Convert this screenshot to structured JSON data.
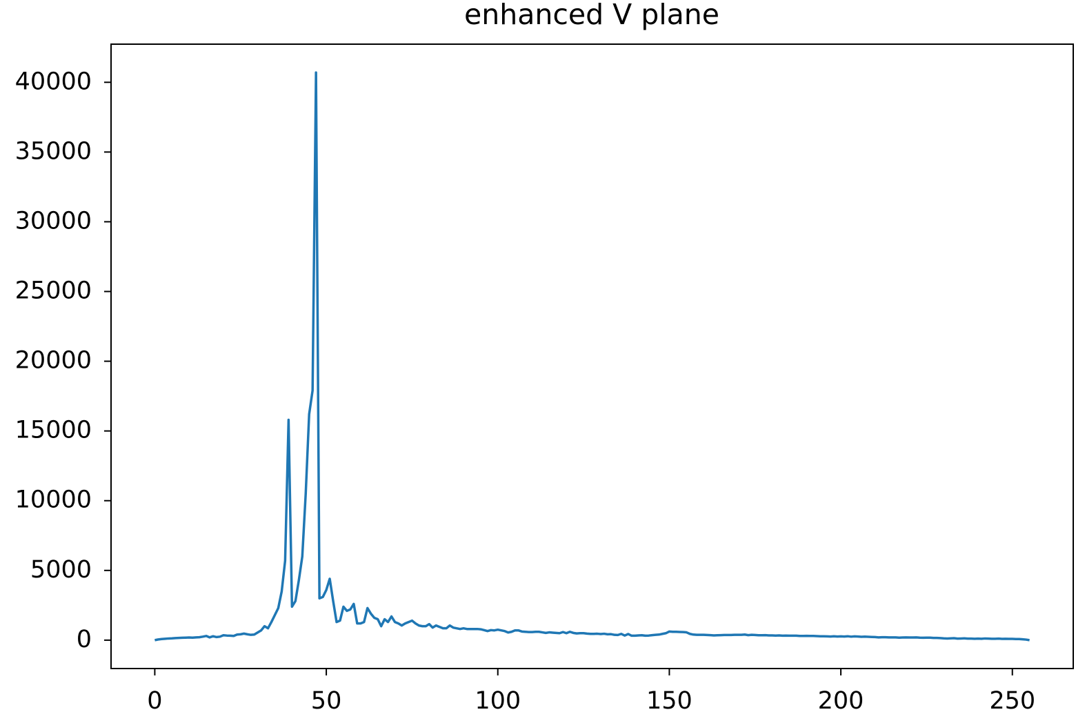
{
  "chart_data": {
    "type": "line",
    "title": "enhanced V plane",
    "x": [
      0,
      1,
      2,
      3,
      4,
      5,
      6,
      7,
      8,
      9,
      10,
      11,
      12,
      13,
      14,
      15,
      16,
      17,
      18,
      19,
      20,
      21,
      22,
      23,
      24,
      25,
      26,
      27,
      28,
      29,
      30,
      31,
      32,
      33,
      34,
      35,
      36,
      37,
      38,
      39,
      40,
      41,
      42,
      43,
      44,
      45,
      46,
      47,
      48,
      49,
      50,
      51,
      52,
      53,
      54,
      55,
      56,
      57,
      58,
      59,
      60,
      61,
      62,
      63,
      64,
      65,
      66,
      67,
      68,
      69,
      70,
      71,
      72,
      73,
      74,
      75,
      76,
      77,
      78,
      79,
      80,
      81,
      82,
      83,
      84,
      85,
      86,
      87,
      88,
      89,
      90,
      91,
      92,
      93,
      94,
      95,
      96,
      97,
      98,
      99,
      100,
      101,
      102,
      103,
      104,
      105,
      106,
      107,
      108,
      109,
      110,
      111,
      112,
      113,
      114,
      115,
      116,
      117,
      118,
      119,
      120,
      121,
      122,
      123,
      124,
      125,
      126,
      127,
      128,
      129,
      130,
      131,
      132,
      133,
      134,
      135,
      136,
      137,
      138,
      139,
      140,
      141,
      142,
      143,
      144,
      145,
      146,
      147,
      148,
      149,
      150,
      151,
      152,
      153,
      154,
      155,
      156,
      157,
      158,
      159,
      160,
      161,
      162,
      163,
      164,
      165,
      166,
      167,
      168,
      169,
      170,
      171,
      172,
      173,
      174,
      175,
      176,
      177,
      178,
      179,
      180,
      181,
      182,
      183,
      184,
      185,
      186,
      187,
      188,
      189,
      190,
      191,
      192,
      193,
      194,
      195,
      196,
      197,
      198,
      199,
      200,
      201,
      202,
      203,
      204,
      205,
      206,
      207,
      208,
      209,
      210,
      211,
      212,
      213,
      214,
      215,
      216,
      217,
      218,
      219,
      220,
      221,
      222,
      223,
      224,
      225,
      226,
      227,
      228,
      229,
      230,
      231,
      232,
      233,
      234,
      235,
      236,
      237,
      238,
      239,
      240,
      241,
      242,
      243,
      244,
      245,
      246,
      247,
      248,
      249,
      250,
      251,
      252,
      253,
      254,
      255
    ],
    "series": [
      {
        "color": "#1f77b4",
        "values": [
          0,
          50,
          80,
          100,
          120,
          130,
          150,
          160,
          170,
          180,
          190,
          180,
          200,
          210,
          250,
          300,
          200,
          280,
          220,
          250,
          350,
          330,
          320,
          300,
          400,
          420,
          470,
          420,
          380,
          400,
          550,
          700,
          1000,
          850,
          1300,
          1800,
          2300,
          3500,
          5700,
          15800,
          2400,
          2800,
          4300,
          6000,
          10500,
          16200,
          17900,
          40700,
          3000,
          3100,
          3600,
          4400,
          2800,
          1300,
          1400,
          2400,
          2100,
          2200,
          2600,
          1200,
          1200,
          1300,
          2300,
          1900,
          1600,
          1500,
          1000,
          1500,
          1300,
          1700,
          1300,
          1200,
          1050,
          1200,
          1300,
          1400,
          1200,
          1050,
          1000,
          1000,
          1150,
          900,
          1050,
          950,
          850,
          850,
          1050,
          900,
          850,
          800,
          850,
          800,
          800,
          800,
          800,
          780,
          720,
          650,
          720,
          700,
          750,
          700,
          650,
          550,
          600,
          700,
          700,
          620,
          600,
          580,
          580,
          600,
          600,
          560,
          520,
          560,
          540,
          520,
          500,
          580,
          500,
          600,
          520,
          480,
          500,
          500,
          470,
          450,
          450,
          460,
          440,
          460,
          420,
          430,
          380,
          370,
          450,
          330,
          440,
          320,
          320,
          340,
          350,
          320,
          330,
          360,
          380,
          400,
          450,
          500,
          620,
          600,
          600,
          590,
          580,
          560,
          450,
          400,
          380,
          380,
          380,
          370,
          360,
          340,
          350,
          360,
          370,
          370,
          370,
          380,
          380,
          380,
          400,
          360,
          380,
          370,
          350,
          350,
          360,
          340,
          340,
          330,
          340,
          320,
          330,
          320,
          320,
          320,
          300,
          300,
          310,
          300,
          300,
          290,
          280,
          280,
          270,
          260,
          280,
          260,
          270,
          260,
          280,
          250,
          270,
          260,
          240,
          250,
          240,
          230,
          220,
          200,
          210,
          210,
          200,
          200,
          200,
          180,
          190,
          200,
          190,
          190,
          200,
          180,
          170,
          180,
          180,
          160,
          160,
          150,
          130,
          120,
          130,
          140,
          110,
          120,
          130,
          110,
          110,
          100,
          110,
          100,
          120,
          110,
          100,
          100,
          110,
          90,
          100,
          90,
          90,
          80,
          80,
          60,
          40,
          0
        ]
      }
    ],
    "xlim": [
      -12.75,
      267.75
    ],
    "xticks": [
      0,
      50,
      100,
      150,
      200,
      250
    ],
    "ylim": [
      -2035,
      42735
    ],
    "yticks": [
      0,
      5000,
      10000,
      15000,
      20000,
      25000,
      30000,
      35000,
      40000
    ]
  }
}
